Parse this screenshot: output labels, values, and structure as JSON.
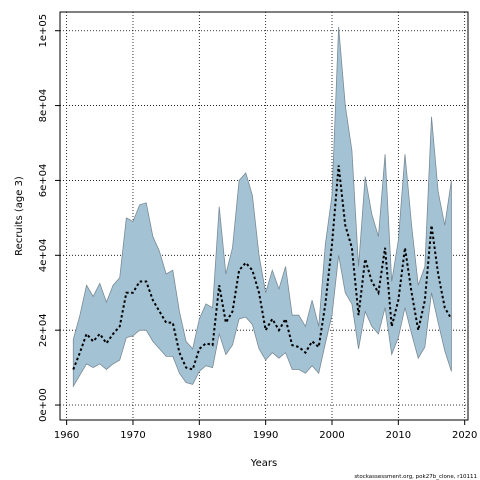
{
  "chart_data": {
    "type": "area",
    "xlabel": "Years",
    "ylabel": "Recruits (age 3)",
    "xlim": [
      1959,
      2020.5
    ],
    "ylim": [
      -4000,
      105000
    ],
    "xticks": [
      1960,
      1970,
      1980,
      1990,
      2000,
      2010,
      2020
    ],
    "xtick_labels": [
      "1960",
      "1970",
      "1980",
      "1990",
      "2000",
      "2010",
      "2020"
    ],
    "yticks": [
      0,
      20000,
      40000,
      60000,
      80000,
      100000
    ],
    "ytick_labels": [
      "0e+00",
      "2e+04",
      "4e+04",
      "6e+04",
      "8e+04",
      "1e+05"
    ],
    "grid": true,
    "credit": "stockassessment.org, pok27b_clone, r10111",
    "colors": {
      "band": "#a3c3d5",
      "band_edge": "#7a8a95",
      "line": "#000000"
    },
    "x": [
      1961,
      1962,
      1963,
      1964,
      1965,
      1966,
      1967,
      1968,
      1969,
      1970,
      1971,
      1972,
      1973,
      1974,
      1975,
      1976,
      1977,
      1978,
      1979,
      1980,
      1981,
      1982,
      1983,
      1984,
      1985,
      1986,
      1987,
      1988,
      1989,
      1990,
      1991,
      1992,
      1993,
      1994,
      1995,
      1996,
      1997,
      1998,
      1999,
      2000,
      2001,
      2002,
      2003,
      2004,
      2005,
      2006,
      2007,
      2008,
      2009,
      2010,
      2011,
      2012,
      2013,
      2014,
      2015,
      2016,
      2017,
      2018
    ],
    "series": [
      {
        "role": "estimate",
        "values": [
          9500,
          14000,
          19000,
          17000,
          19000,
          16500,
          19000,
          21000,
          30000,
          30000,
          33000,
          33000,
          28000,
          25000,
          22000,
          22000,
          14000,
          10000,
          9500,
          15000,
          16500,
          16000,
          32000,
          22000,
          25000,
          36000,
          38000,
          36000,
          30000,
          20000,
          23000,
          20000,
          23000,
          16000,
          15500,
          14000,
          17000,
          15500,
          27000,
          43000,
          64000,
          48000,
          42000,
          24000,
          39000,
          33000,
          30000,
          42000,
          21000,
          28000,
          42000,
          30000,
          20000,
          28000,
          48000,
          35000,
          26000,
          23000
        ]
      },
      {
        "role": "upper",
        "values": [
          17500,
          24000,
          32000,
          29000,
          32500,
          27500,
          32000,
          34000,
          50000,
          49000,
          53500,
          54000,
          45000,
          41000,
          35000,
          36000,
          25000,
          17000,
          15000,
          23000,
          27000,
          26000,
          53000,
          35000,
          42000,
          60000,
          62000,
          56000,
          40000,
          30000,
          36000,
          31000,
          37000,
          24000,
          24000,
          21000,
          28000,
          21000,
          43000,
          56000,
          101000,
          80000,
          68000,
          37000,
          61000,
          51000,
          45000,
          67000,
          33000,
          44000,
          67000,
          48000,
          32000,
          37000,
          77000,
          57000,
          48000,
          60000
        ]
      },
      {
        "role": "lower",
        "values": [
          5000,
          8000,
          11000,
          10000,
          11000,
          9500,
          11000,
          12000,
          18000,
          18500,
          20000,
          20000,
          17000,
          15000,
          13000,
          13000,
          8500,
          6000,
          5500,
          9000,
          10500,
          10000,
          19000,
          13500,
          16000,
          23000,
          23500,
          21500,
          15000,
          12000,
          14000,
          12500,
          14000,
          9500,
          9500,
          8500,
          10500,
          8500,
          16500,
          24000,
          40000,
          30000,
          27000,
          15000,
          25000,
          21000,
          19000,
          26000,
          13500,
          18000,
          26000,
          19000,
          12500,
          15500,
          30000,
          22000,
          14500,
          9000
        ]
      }
    ]
  }
}
